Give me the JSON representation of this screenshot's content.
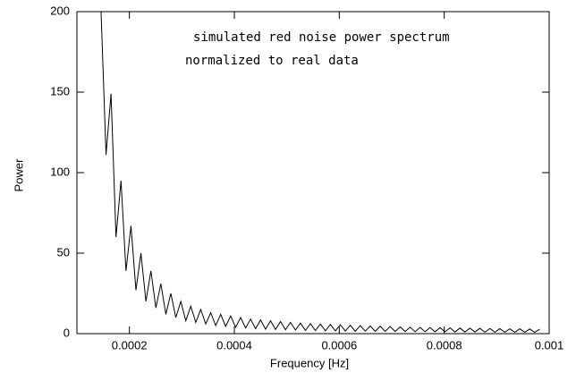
{
  "chart_data": {
    "type": "line",
    "annotations": [
      "simulated red noise power spectrum",
      "normalized to real data"
    ],
    "x_label": "Frequency [Hz]",
    "y_label": "Power",
    "xlim": [
      0.0001,
      0.001
    ],
    "xticks": [
      0.0002,
      0.0004,
      0.0006,
      0.0008,
      0.001
    ],
    "ylim": [
      0,
      200
    ],
    "yticks": [
      0,
      50,
      100,
      150,
      200
    ],
    "color": "#000000",
    "x": [
      0.000146,
      0.0001555,
      0.000165,
      0.0001745,
      0.000184,
      0.0001935,
      0.000203,
      0.0002125,
      0.000222,
      0.0002315,
      0.000241,
      0.0002505,
      0.00026,
      0.0002695,
      0.000279,
      0.0002885,
      0.000298,
      0.0003075,
      0.000317,
      0.0003265,
      0.000336,
      0.0003455,
      0.000355,
      0.0003645,
      0.000374,
      0.0003835,
      0.000393,
      0.0004025,
      0.000412,
      0.0004215,
      0.000431,
      0.0004405,
      0.00045,
      0.0004595,
      0.000469,
      0.0004785,
      0.000488,
      0.0004975,
      0.000507,
      0.0005165,
      0.000526,
      0.0005355,
      0.000545,
      0.0005545,
      0.000564,
      0.0005735,
      0.000583,
      0.0005925,
      0.000602,
      0.0006115,
      0.000621,
      0.0006305,
      0.00064,
      0.0006495,
      0.000659,
      0.0006685,
      0.000678,
      0.0006875,
      0.000697,
      0.0007065,
      0.000716,
      0.0007255,
      0.000735,
      0.0007445,
      0.000754,
      0.0007635,
      0.000773,
      0.0007825,
      0.000792,
      0.0008015,
      0.000811,
      0.0008205,
      0.00083,
      0.0008395,
      0.000849,
      0.0008585,
      0.000868,
      0.0008775,
      0.000887,
      0.0008965,
      0.000906,
      0.0009155,
      0.000925,
      0.0009345,
      0.000944,
      0.0009535,
      0.000963,
      0.0009725,
      0.000982
    ],
    "values": [
      200,
      111,
      149,
      60,
      95,
      39,
      67,
      27,
      50,
      20,
      39,
      16,
      31,
      12,
      25,
      10,
      20,
      8,
      17,
      7,
      15,
      6,
      13,
      5,
      12,
      4.5,
      11,
      4,
      10,
      3.5,
      9,
      3,
      8.5,
      2.8,
      8,
      2.6,
      7.5,
      2.4,
      7,
      2.2,
      6.5,
      2,
      6.2,
      1.9,
      6,
      1.8,
      5.7,
      1.7,
      5.5,
      1.6,
      5.2,
      1.5,
      5,
      1.5,
      4.8,
      1.4,
      4.6,
      1.4,
      4.4,
      1.3,
      4.2,
      1.3,
      4,
      1.2,
      3.9,
      1.2,
      3.8,
      1.1,
      3.7,
      1.1,
      3.6,
      1,
      3.5,
      1,
      3.4,
      1,
      3.3,
      0.9,
      3.2,
      0.9,
      3.1,
      0.9,
      3,
      0.8,
      3,
      0.8,
      2.9,
      0.8,
      2.8
    ]
  }
}
